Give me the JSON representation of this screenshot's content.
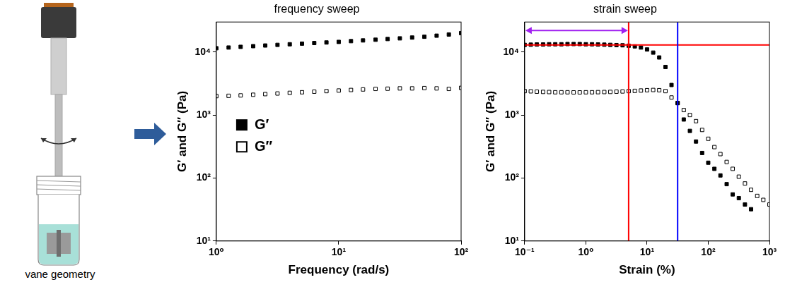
{
  "diagram": {
    "label": "vane geometry"
  },
  "chart_data": [
    {
      "type": "scatter",
      "title": "frequency sweep",
      "x_label": "Frequency (rad/s)",
      "y_label": "G′ and G″ (Pa)",
      "x": [
        1,
        1.26,
        1.58,
        2,
        2.51,
        3.16,
        3.98,
        5.01,
        6.31,
        7.94,
        10,
        12.6,
        15.8,
        20,
        25.1,
        31.6,
        39.8,
        50.1,
        63.1,
        79.4,
        100
      ],
      "series": [
        {
          "name": "G′",
          "color": "#000000",
          "marker": "square",
          "values": [
            11500,
            11800,
            12100,
            12400,
            12700,
            13000,
            13300,
            13600,
            13900,
            14200,
            14500,
            14900,
            15300,
            15700,
            16100,
            16500,
            17000,
            17500,
            18200,
            19000,
            20000
          ]
        },
        {
          "name": "G″",
          "color": "#000000",
          "marker": "open_square",
          "values": [
            2000,
            2020,
            2050,
            2100,
            2150,
            2200,
            2250,
            2300,
            2350,
            2400,
            2450,
            2500,
            2550,
            2600,
            2620,
            2650,
            2650,
            2680,
            2650,
            2600,
            2700
          ]
        }
      ],
      "xlim": [
        1,
        100
      ],
      "ylim": [
        10,
        30000
      ],
      "xticks": [
        {
          "value": 1,
          "label": "10⁰"
        },
        {
          "value": 10,
          "label": "10¹"
        },
        {
          "value": 100,
          "label": "10²"
        }
      ],
      "yticks": [
        {
          "value": 10,
          "label": "10¹"
        },
        {
          "value": 100,
          "label": "10²"
        },
        {
          "value": 1000,
          "label": "10³"
        },
        {
          "value": 10000,
          "label": "10⁴"
        }
      ],
      "log": true,
      "grid": false,
      "legend": "left"
    },
    {
      "type": "scatter",
      "title": "strain sweep",
      "x_label": "Strain (%)",
      "y_label": "G′ and G″ (Pa)",
      "x": [
        0.1,
        0.126,
        0.158,
        0.2,
        0.251,
        0.316,
        0.398,
        0.501,
        0.631,
        0.794,
        1,
        1.26,
        1.58,
        2,
        2.51,
        3.16,
        3.98,
        5.01,
        6.31,
        7.94,
        10,
        12.6,
        15.8,
        20,
        25.1,
        31.6,
        39.8,
        50.1,
        63.1,
        79.4,
        100,
        126,
        158,
        200,
        251,
        316,
        398,
        501,
        631,
        794,
        1000
      ],
      "series": [
        {
          "color": "#000000",
          "marker": "square",
          "values": [
            13000,
            13100,
            13200,
            13200,
            13300,
            13300,
            13300,
            13400,
            13400,
            13400,
            13300,
            13300,
            13200,
            13100,
            13000,
            12900,
            12800,
            12600,
            12300,
            11800,
            11000,
            9800,
            8200,
            5800,
            3000,
            1550,
            850,
            560,
            380,
            250,
            175,
            140,
            110,
            80,
            55,
            48,
            38,
            32,
            null,
            null,
            null
          ]
        },
        {
          "color": "#000000",
          "marker": "open_square",
          "values": [
            2400,
            2380,
            2350,
            2330,
            2320,
            2300,
            2300,
            2300,
            2290,
            2290,
            2300,
            2300,
            2310,
            2320,
            2330,
            2350,
            2370,
            2400,
            2420,
            2450,
            2480,
            2500,
            2480,
            2400,
            1900,
            1550,
            1200,
            1000,
            800,
            580,
            420,
            310,
            240,
            180,
            140,
            105,
            82,
            65,
            52,
            45,
            38
          ]
        }
      ],
      "xlim": [
        0.1,
        1000
      ],
      "ylim": [
        10,
        30000
      ],
      "xticks": [
        {
          "value": 0.1,
          "label": "10⁻¹"
        },
        {
          "value": 1,
          "label": "10⁰"
        },
        {
          "value": 10,
          "label": "10¹"
        },
        {
          "value": 100,
          "label": "10²"
        },
        {
          "value": 1000,
          "label": "10³"
        }
      ],
      "yticks": [
        {
          "value": 10,
          "label": "10¹"
        },
        {
          "value": 100,
          "label": "10²"
        },
        {
          "value": 1000,
          "label": "10³"
        },
        {
          "value": 10000,
          "label": "10⁴"
        }
      ],
      "log": true,
      "grid": false,
      "reference_lines": [
        {
          "x": 5,
          "color": "#ff0000"
        },
        {
          "y": 13000,
          "color": "#ff0000"
        },
        {
          "x": 31.6,
          "color": "#0000ff"
        }
      ],
      "range_arrows": [
        {
          "from": 0.1,
          "to": 5,
          "y": 22000,
          "color": "#a020f0"
        }
      ]
    }
  ]
}
